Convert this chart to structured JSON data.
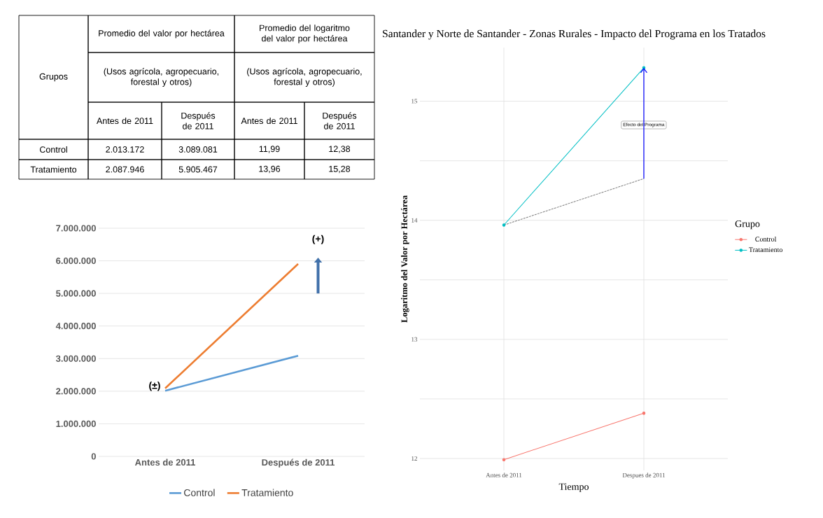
{
  "chart_data": [
    {
      "type": "other",
      "annotations": [
        "Grupos",
        "Promedio del valor por hectárea",
        "Promedio del logaritmo del valor por hectárea",
        "(Usos agrícola, agropecuario, forestal y otros)",
        "(Usos agrícola, agropecuario, forestal y otros)",
        "Antes de 2011",
        "Después de 2011",
        "Antes de 2011",
        "Después de 2011",
        "Control",
        "2.013.172",
        "3.089.081",
        "11,99",
        "12,38",
        "Tratamiento",
        "2.087.946",
        "5.905.467",
        "13,96",
        "15,28"
      ]
    },
    {
      "type": "line",
      "categories": [
        "Antes de 2011",
        "Después de 2011"
      ],
      "series": [
        {
          "name": "Control",
          "color": "#5b9bd5",
          "values": [
            2013172,
            3089081
          ]
        },
        {
          "name": "Tratamiento",
          "color": "#ed7d31",
          "values": [
            2087946,
            5905467
          ]
        }
      ],
      "ylim": [
        0,
        7000000
      ],
      "yticks": [
        0,
        {
          "value": 1000000,
          "label": "1.000.000"
        },
        {
          "value": 2000000,
          "label": "2.000.000"
        },
        {
          "value": 3000000,
          "label": "3.000.000"
        },
        {
          "value": 4000000,
          "label": "4.000.000"
        },
        {
          "value": 5000000,
          "label": "5.000.000"
        },
        {
          "value": 6000000,
          "label": "6.000.000"
        },
        {
          "value": 7000000,
          "label": "7.000.000"
        }
      ],
      "grid": "y",
      "legend": "bottom",
      "line_style": "solid",
      "annotations": [
        {
          "text": "(±)",
          "x": "Antes de 2011",
          "y": 2000000
        },
        "(+)"
      ]
    },
    {
      "type": "line",
      "title": "Santander y Norte de Santander - Zonas Rurales - Impacto del Programa en los Tratados",
      "xlabel": "Tiempo",
      "ylabel": "Logaritmo del Valor por Hectárea",
      "legend_title": "Grupo",
      "categories": [
        "Antes de 2011",
        "Despues de 2011"
      ],
      "series": [
        {
          "name": "Control",
          "color": "#f8766d",
          "values": [
            11.99,
            12.38
          ]
        },
        {
          "name": "Tratamiento",
          "color": "#00bfc4",
          "values": [
            13.96,
            15.28
          ]
        },
        {
          "color": "#7f7f7f",
          "values": [
            13.96,
            14.35
          ],
          "line_style": "dashed",
          "marker": "none"
        }
      ],
      "ylim": [
        11.9,
        15.45
      ],
      "yticks": [
        12,
        {
          "value": 12.5,
          "label": null
        },
        13,
        {
          "value": 13.5,
          "label": null
        },
        14,
        {
          "value": 14.5,
          "label": null
        },
        15
      ],
      "grid": true,
      "legend": "right",
      "marker": "circle",
      "line_style": "solid",
      "annotations": [
        "Efecto del Programa"
      ]
    }
  ]
}
